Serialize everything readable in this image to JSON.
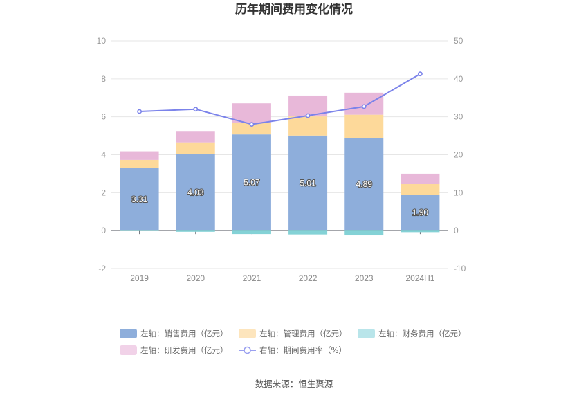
{
  "chart_data": {
    "type": "bar",
    "title": "历年期间费用变化情况",
    "categories": [
      "2019",
      "2020",
      "2021",
      "2022",
      "2023",
      "2024H1"
    ],
    "left_axis": {
      "ylim": [
        -2,
        10
      ],
      "ticks": [
        -2,
        0,
        2,
        4,
        6,
        8,
        10
      ]
    },
    "right_axis": {
      "ylim": [
        -10,
        50
      ],
      "ticks": [
        -10,
        0,
        10,
        20,
        30,
        40,
        50
      ]
    },
    "grid": true,
    "stacked": true,
    "series": [
      {
        "name": "左轴：销售费用（亿元）",
        "type": "bar",
        "axis": "left",
        "color": "#8eaedb",
        "values": [
          3.31,
          4.03,
          5.07,
          5.01,
          4.89,
          1.9
        ],
        "show_labels": true
      },
      {
        "name": "左轴：管理费用（亿元）",
        "type": "bar",
        "axis": "left",
        "color": "#fdd99a",
        "values": [
          0.42,
          0.62,
          0.62,
          1.01,
          1.22,
          0.55
        ]
      },
      {
        "name": "左轴：财务费用（亿元）",
        "type": "bar",
        "axis": "left",
        "color": "#84d2d6",
        "values": [
          -0.02,
          -0.06,
          -0.18,
          -0.2,
          -0.25,
          -0.08
        ]
      },
      {
        "name": "左轴：研发费用（亿元）",
        "type": "bar",
        "axis": "left",
        "color": "#e8b8d9",
        "values": [
          0.45,
          0.6,
          1.02,
          1.1,
          1.16,
          0.55
        ]
      },
      {
        "name": "右轴：期间费用率（%）",
        "type": "line",
        "axis": "right",
        "color": "#7b83ea",
        "values": [
          31.4,
          32.0,
          28.0,
          30.3,
          32.7,
          41.3
        ]
      }
    ],
    "legend_position": "bottom",
    "legend_colors": [
      "#8eaedb",
      "#fde5bd",
      "#b9e5ea",
      "#f1d2e8",
      "#9aa0f0"
    ]
  },
  "source": "数据来源：恒生聚源"
}
